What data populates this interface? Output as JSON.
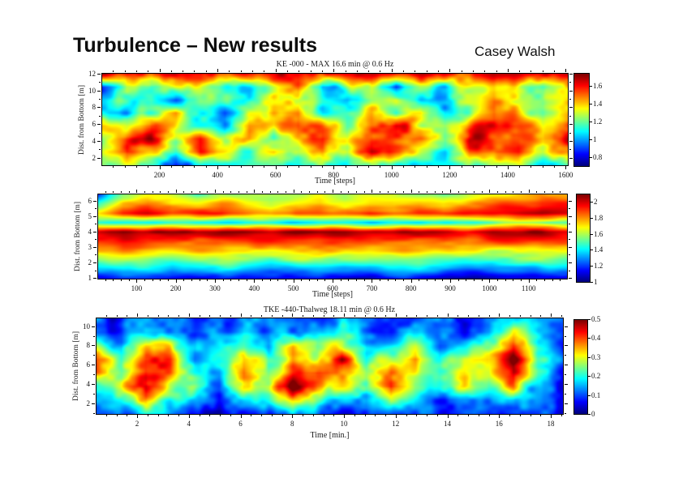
{
  "slide": {
    "title": "Turbulence – New results",
    "author": "Casey Walsh"
  },
  "colors": {
    "background": "#ffffff",
    "text": "#111111",
    "axis": "#000000"
  },
  "chart_data": [
    {
      "type": "heatmap",
      "title": "KE -000 - MAX 16.6 min @ 0.6 Hz",
      "xlabel": "Time [steps]",
      "ylabel": "Dist. from Bottom [m]",
      "colormap": "jet",
      "x_range": [
        0,
        1610
      ],
      "y_range": [
        1.0,
        12.1
      ],
      "x_ticks": [
        200,
        400,
        600,
        800,
        1000,
        1200,
        1400,
        1600
      ],
      "y_ticks": [
        2,
        4,
        6,
        8,
        10,
        12
      ],
      "colorbar": {
        "min": 0.7,
        "max": 1.75,
        "tick_values": [
          1.6,
          1.4,
          1.2,
          1.0,
          0.8
        ],
        "tick_labels": [
          "1.6",
          "1.4",
          "1.2",
          "1",
          "0.8"
        ]
      },
      "grid_note": "coarse KE values, rows ordered top-to-bottom over y_range, cols left-to-right over x_range",
      "values": [
        [
          1.62,
          1.68,
          1.45,
          1.6,
          1.7,
          1.62,
          1.55,
          1.65,
          1.68,
          1.6,
          1.62,
          1.66,
          1.6,
          1.68,
          1.64,
          1.58,
          1.62,
          1.66,
          1.7,
          1.64
        ],
        [
          0.82,
          1.25,
          1.05,
          1.3,
          1.35,
          1.2,
          1.1,
          1.3,
          1.45,
          0.95,
          1.2,
          1.35,
          0.9,
          1.25,
          1.1,
          1.3,
          1.45,
          1.3,
          1.2,
          1.5
        ],
        [
          1.1,
          1.15,
          1.25,
          1.0,
          1.2,
          1.1,
          1.05,
          1.35,
          1.4,
          1.05,
          0.95,
          1.2,
          1.3,
          1.1,
          1.05,
          1.25,
          1.45,
          1.3,
          1.15,
          1.35
        ],
        [
          1.15,
          1.0,
          1.2,
          1.45,
          1.1,
          0.95,
          1.3,
          1.5,
          1.55,
          1.1,
          1.2,
          1.4,
          1.15,
          1.5,
          1.1,
          1.25,
          1.55,
          1.35,
          1.2,
          1.45
        ],
        [
          1.45,
          1.3,
          1.55,
          1.35,
          1.15,
          1.05,
          1.5,
          1.3,
          1.6,
          1.45,
          1.2,
          1.5,
          1.65,
          1.3,
          1.25,
          1.55,
          1.65,
          1.5,
          1.3,
          1.6
        ],
        [
          1.3,
          1.6,
          1.65,
          1.3,
          1.6,
          1.25,
          1.45,
          1.25,
          1.5,
          1.65,
          1.3,
          1.6,
          1.55,
          1.5,
          1.2,
          1.65,
          1.6,
          1.55,
          1.4,
          1.65
        ],
        [
          1.2,
          1.65,
          1.35,
          1.2,
          1.6,
          1.35,
          1.1,
          1.4,
          1.3,
          1.55,
          1.25,
          1.65,
          1.5,
          1.3,
          1.15,
          1.55,
          1.5,
          1.6,
          1.3,
          1.55
        ],
        [
          1.1,
          1.2,
          1.1,
          0.78,
          1.15,
          1.1,
          1.2,
          1.1,
          1.05,
          1.15,
          1.0,
          1.25,
          1.15,
          1.05,
          1.1,
          1.2,
          1.15,
          1.25,
          1.1,
          1.2
        ]
      ]
    },
    {
      "type": "heatmap",
      "title": "",
      "xlabel": "Time [steps]",
      "ylabel": "Dist. from Bottom [m]",
      "colormap": "jet",
      "x_range": [
        0,
        1200
      ],
      "y_range": [
        0.9,
        6.45
      ],
      "x_ticks": [
        100,
        200,
        300,
        400,
        500,
        600,
        700,
        800,
        900,
        1000,
        1100
      ],
      "y_ticks": [
        1,
        2,
        3,
        4,
        5,
        6
      ],
      "colorbar": {
        "min": 1.0,
        "max": 2.1,
        "tick_values": [
          2.0,
          1.8,
          1.6,
          1.4,
          1.2,
          1.0
        ],
        "tick_labels": [
          "2",
          "1.8",
          "1.6",
          "1.4",
          "1.2",
          "1"
        ]
      },
      "grid_note": "coarse values, rows ordered top-to-bottom over y_range, cols left-to-right over x_range",
      "values": [
        [
          1.25,
          1.55,
          1.65,
          1.6,
          1.55,
          1.65,
          1.6,
          1.55,
          1.6,
          1.65,
          1.55,
          1.6,
          1.65,
          1.6,
          1.55,
          1.65,
          1.7,
          1.75,
          1.85,
          1.8
        ],
        [
          1.5,
          1.75,
          1.8,
          1.7,
          1.75,
          1.8,
          1.7,
          1.65,
          1.75,
          1.8,
          1.7,
          1.75,
          1.7,
          1.75,
          1.7,
          1.8,
          1.85,
          1.9,
          1.95,
          1.9
        ],
        [
          1.7,
          1.9,
          1.95,
          1.85,
          1.9,
          1.95,
          1.85,
          1.8,
          1.9,
          1.85,
          1.8,
          1.9,
          1.85,
          1.9,
          1.85,
          1.9,
          1.95,
          2.0,
          2.05,
          2.0
        ],
        [
          1.45,
          1.4,
          1.38,
          1.42,
          1.4,
          1.38,
          1.42,
          1.4,
          1.38,
          1.42,
          1.4,
          1.38,
          1.42,
          1.4,
          1.42,
          1.45,
          1.5,
          1.55,
          1.5,
          1.45
        ],
        [
          2.05,
          2.1,
          2.05,
          2.08,
          2.05,
          2.1,
          2.05,
          2.02,
          2.08,
          2.05,
          2.1,
          2.05,
          2.02,
          2.08,
          2.05,
          2.02,
          2.08,
          2.05,
          2.1,
          2.05
        ],
        [
          1.9,
          1.95,
          1.9,
          1.92,
          1.88,
          1.85,
          1.9,
          1.95,
          1.9,
          1.85,
          1.9,
          1.92,
          1.88,
          1.85,
          1.9,
          1.85,
          1.88,
          1.92,
          1.9,
          1.85
        ],
        [
          1.75,
          1.8,
          1.75,
          1.7,
          1.75,
          1.78,
          1.72,
          1.7,
          1.75,
          1.78,
          1.72,
          1.7,
          1.74,
          1.78,
          1.72,
          1.68,
          1.65,
          1.7,
          1.74,
          1.7
        ],
        [
          1.55,
          1.6,
          1.58,
          1.52,
          1.56,
          1.6,
          1.55,
          1.5,
          1.55,
          1.58,
          1.52,
          1.5,
          1.54,
          1.58,
          1.52,
          1.48,
          1.45,
          1.5,
          1.54,
          1.5
        ],
        [
          1.35,
          1.4,
          1.38,
          1.32,
          1.36,
          1.4,
          1.35,
          1.3,
          1.35,
          1.38,
          1.32,
          1.3,
          1.34,
          1.38,
          1.32,
          1.28,
          1.25,
          1.3,
          1.34,
          1.3
        ],
        [
          1.12,
          1.18,
          1.15,
          1.1,
          1.14,
          1.18,
          1.12,
          1.08,
          1.12,
          1.15,
          1.1,
          1.08,
          1.12,
          1.15,
          1.1,
          1.06,
          1.05,
          1.1,
          1.12,
          1.08
        ]
      ]
    },
    {
      "type": "heatmap",
      "title": "TKE -440-Thalweg 18.11 min @ 0.6 Hz",
      "xlabel": "Time [min.]",
      "ylabel": "Dist. from Bottom [m]",
      "colormap": "jet",
      "x_range": [
        0.4,
        18.5
      ],
      "y_range": [
        0.8,
        10.9
      ],
      "x_ticks": [
        2,
        4,
        6,
        8,
        10,
        12,
        14,
        16,
        18
      ],
      "y_ticks": [
        2,
        4,
        6,
        8,
        10
      ],
      "colorbar": {
        "min": 0,
        "max": 0.5,
        "tick_values": [
          0.5,
          0.4,
          0.3,
          0.2,
          0.1,
          0
        ],
        "tick_labels": [
          "0.5",
          "0.4",
          "0.3",
          "0.2",
          "0.1",
          "0"
        ]
      },
      "grid_note": "coarse TKE values, rows ordered top-to-bottom over y_range, cols left-to-right over x_range",
      "values": [
        [
          0.1,
          0.08,
          0.12,
          0.1,
          0.08,
          0.1,
          0.12,
          0.08,
          0.1,
          0.08,
          0.14,
          0.1,
          0.08,
          0.12,
          0.1,
          0.08,
          0.1,
          0.2,
          0.1,
          0.08
        ],
        [
          0.12,
          0.1,
          0.18,
          0.14,
          0.1,
          0.12,
          0.16,
          0.1,
          0.14,
          0.16,
          0.2,
          0.12,
          0.1,
          0.16,
          0.12,
          0.1,
          0.16,
          0.3,
          0.14,
          0.1
        ],
        [
          0.25,
          0.14,
          0.32,
          0.3,
          0.12,
          0.18,
          0.25,
          0.14,
          0.3,
          0.2,
          0.32,
          0.15,
          0.2,
          0.28,
          0.14,
          0.2,
          0.25,
          0.42,
          0.18,
          0.1
        ],
        [
          0.42,
          0.2,
          0.38,
          0.42,
          0.16,
          0.22,
          0.35,
          0.2,
          0.38,
          0.3,
          0.45,
          0.2,
          0.3,
          0.38,
          0.2,
          0.3,
          0.32,
          0.5,
          0.22,
          0.1
        ],
        [
          0.38,
          0.28,
          0.48,
          0.4,
          0.2,
          0.14,
          0.38,
          0.26,
          0.42,
          0.45,
          0.38,
          0.24,
          0.38,
          0.3,
          0.24,
          0.34,
          0.28,
          0.48,
          0.18,
          0.1
        ],
        [
          0.2,
          0.3,
          0.5,
          0.3,
          0.24,
          0.1,
          0.3,
          0.3,
          0.5,
          0.36,
          0.3,
          0.2,
          0.42,
          0.24,
          0.2,
          0.3,
          0.24,
          0.36,
          0.14,
          0.08
        ],
        [
          0.12,
          0.2,
          0.36,
          0.2,
          0.15,
          0.08,
          0.16,
          0.2,
          0.36,
          0.22,
          0.16,
          0.12,
          0.26,
          0.15,
          0.12,
          0.16,
          0.15,
          0.2,
          0.1,
          0.08
        ],
        [
          0.08,
          0.1,
          0.16,
          0.1,
          0.08,
          0.06,
          0.08,
          0.1,
          0.16,
          0.1,
          0.08,
          0.08,
          0.12,
          0.08,
          0.08,
          0.1,
          0.08,
          0.1,
          0.08,
          0.06
        ]
      ]
    }
  ]
}
